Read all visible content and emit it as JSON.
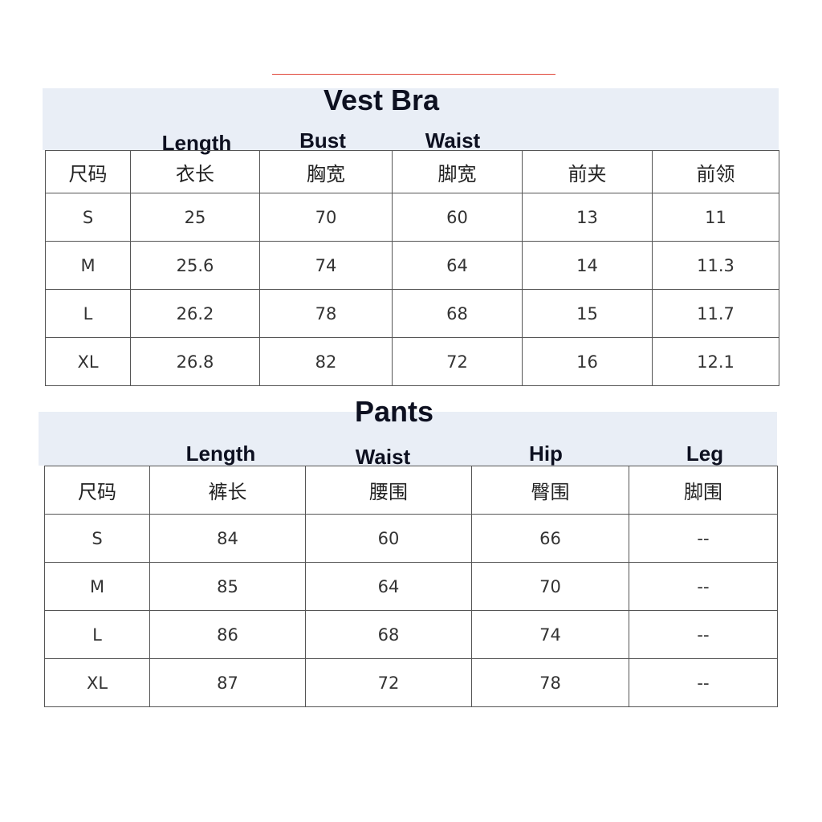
{
  "vest_bra": {
    "title": "Vest Bra",
    "english_labels": [
      "Length",
      "Bust",
      "Waist"
    ],
    "headers": [
      "尺码",
      "衣长",
      "胸宽",
      "脚宽",
      "前夹",
      "前领"
    ],
    "rows": [
      [
        "S",
        "25",
        "70",
        "60",
        "13",
        "11"
      ],
      [
        "M",
        "25.6",
        "74",
        "64",
        "14",
        "11.3"
      ],
      [
        "L",
        "26.2",
        "78",
        "68",
        "15",
        "11.7"
      ],
      [
        "XL",
        "26.8",
        "82",
        "72",
        "16",
        "12.1"
      ]
    ]
  },
  "pants": {
    "title": "Pants",
    "english_labels": [
      "Length",
      "Waist",
      "Hip",
      "Leg"
    ],
    "headers": [
      "尺码",
      "裤长",
      "腰围",
      "臀围",
      "脚围"
    ],
    "rows": [
      [
        "S",
        "84",
        "60",
        "66",
        "--"
      ],
      [
        "M",
        "85",
        "64",
        "70",
        "--"
      ],
      [
        "L",
        "86",
        "68",
        "74",
        "--"
      ],
      [
        "XL",
        "87",
        "72",
        "78",
        "--"
      ]
    ]
  },
  "colors": {
    "header_band": "#e9eef6",
    "accent_line": "#e0463a"
  }
}
